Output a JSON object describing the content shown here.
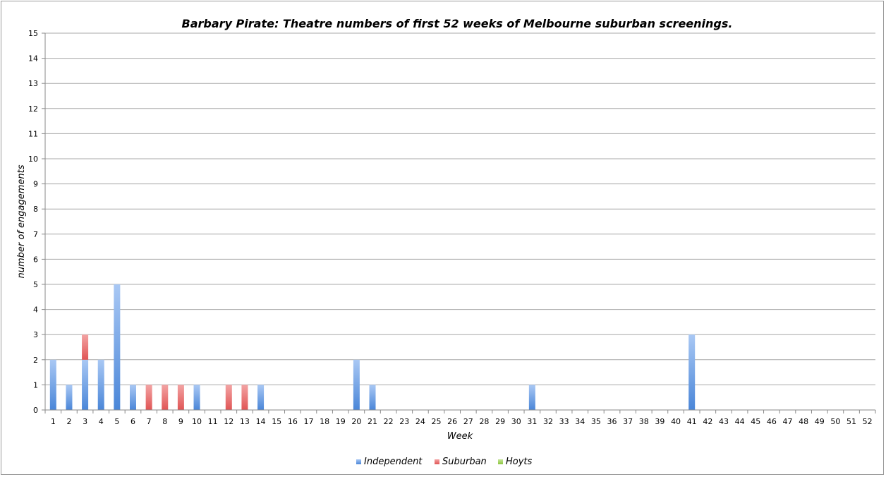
{
  "chart_data": {
    "type": "bar",
    "stacked": true,
    "title": "Barbary Pirate: Theatre numbers of first 52 weeks of Melbourne suburban screenings.",
    "xlabel": "Week",
    "ylabel": "number of engagements",
    "ylim": [
      0,
      15
    ],
    "yticks": [
      "0",
      "1",
      "2",
      "3",
      "4",
      "5",
      "6",
      "7",
      "8",
      "9",
      "10",
      "11",
      "12",
      "13",
      "14",
      "15"
    ],
    "grid": true,
    "legend_position": "bottom",
    "categories": [
      "1",
      "2",
      "3",
      "4",
      "5",
      "6",
      "7",
      "8",
      "9",
      "10",
      "11",
      "12",
      "13",
      "14",
      "15",
      "16",
      "17",
      "18",
      "19",
      "20",
      "21",
      "22",
      "23",
      "24",
      "25",
      "26",
      "27",
      "28",
      "29",
      "30",
      "31",
      "32",
      "33",
      "34",
      "35",
      "36",
      "37",
      "38",
      "39",
      "40",
      "41",
      "42",
      "43",
      "44",
      "45",
      "46",
      "47",
      "48",
      "49",
      "50",
      "51",
      "52"
    ],
    "series": [
      {
        "name": "Independent",
        "color": "#4a86d8",
        "values": [
          2,
          1,
          2,
          2,
          5,
          1,
          0,
          0,
          0,
          1,
          0,
          0,
          0,
          1,
          0,
          0,
          0,
          0,
          0,
          2,
          1,
          0,
          0,
          0,
          0,
          0,
          0,
          0,
          0,
          0,
          1,
          0,
          0,
          0,
          0,
          0,
          0,
          0,
          0,
          0,
          3,
          0,
          0,
          0,
          0,
          0,
          0,
          0,
          0,
          0,
          0,
          0
        ]
      },
      {
        "name": "Suburban",
        "color": "#e05555",
        "values": [
          0,
          0,
          1,
          0,
          0,
          0,
          1,
          1,
          1,
          0,
          0,
          1,
          1,
          0,
          0,
          0,
          0,
          0,
          0,
          0,
          0,
          0,
          0,
          0,
          0,
          0,
          0,
          0,
          0,
          0,
          0,
          0,
          0,
          0,
          0,
          0,
          0,
          0,
          0,
          0,
          0,
          0,
          0,
          0,
          0,
          0,
          0,
          0,
          0,
          0,
          0,
          0
        ]
      },
      {
        "name": "Hoyts",
        "color": "#8cc63f",
        "values": [
          0,
          0,
          0,
          0,
          0,
          0,
          0,
          0,
          0,
          0,
          0,
          0,
          0,
          0,
          0,
          0,
          0,
          0,
          0,
          0,
          0,
          0,
          0,
          0,
          0,
          0,
          0,
          0,
          0,
          0,
          0,
          0,
          0,
          0,
          0,
          0,
          0,
          0,
          0,
          0,
          0,
          0,
          0,
          0,
          0,
          0,
          0,
          0,
          0,
          0,
          0,
          0
        ]
      }
    ]
  }
}
